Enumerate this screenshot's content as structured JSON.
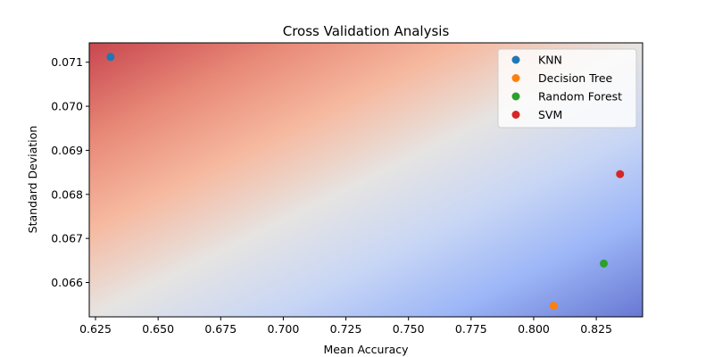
{
  "chart_data": {
    "type": "scatter",
    "title": "Cross Validation Analysis",
    "xlabel": "Mean Accuracy",
    "ylabel": "Standard Deviation",
    "xlim": [
      0.6225,
      0.8435
    ],
    "ylim": [
      0.06522,
      0.07144
    ],
    "xticks": [
      "0.625",
      "0.650",
      "0.675",
      "0.700",
      "0.725",
      "0.750",
      "0.775",
      "0.800",
      "0.825"
    ],
    "yticks": [
      "0.066",
      "0.067",
      "0.068",
      "0.069",
      "0.070",
      "0.071"
    ],
    "grid": false,
    "legend_position": "top-right",
    "background": "diagonal gradient: red (top-left) to white (center) to blue (bottom-right)",
    "series": [
      {
        "name": "KNN",
        "color": "#1f77b4",
        "x": [
          0.631
        ],
        "y": [
          0.07112
        ]
      },
      {
        "name": "Decision Tree",
        "color": "#ff7f0e",
        "x": [
          0.808
        ],
        "y": [
          0.06547
        ]
      },
      {
        "name": "Random Forest",
        "color": "#2ca02c",
        "x": [
          0.828
        ],
        "y": [
          0.06643
        ]
      },
      {
        "name": "SVM",
        "color": "#d62728",
        "x": [
          0.8345
        ],
        "y": [
          0.06846
        ]
      }
    ]
  }
}
